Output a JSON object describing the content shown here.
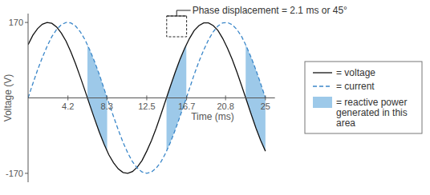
{
  "chart_data": {
    "type": "line",
    "x_label": "Time (ms)",
    "y_label": "Voltage (V)",
    "x": [
      0,
      0.5,
      1,
      1.5,
      2,
      2.5,
      3,
      3.5,
      4,
      4.5,
      5,
      5.5,
      6,
      6.5,
      7,
      7.5,
      8,
      8.5,
      9,
      9.5,
      10,
      10.5,
      11,
      11.5,
      12,
      12.5,
      13,
      13.5,
      14,
      14.5,
      15,
      15.5,
      16,
      16.5,
      17,
      17.5,
      18,
      18.5,
      19,
      19.5,
      20,
      20.5,
      21,
      21.5,
      22,
      22.5,
      23,
      23.5,
      24,
      24.5,
      25
    ],
    "series": [
      {
        "name": "= voltage",
        "color": "#111111",
        "line_style": "solid",
        "values": [
          120,
          141,
          156,
          166,
          170,
          168,
          160,
          146,
          128,
          104,
          77,
          47,
          16,
          -16,
          -47,
          -77,
          -104,
          -128,
          -146,
          -160,
          -168,
          -170,
          -166,
          -156,
          -141,
          -120,
          -96,
          -68,
          -37,
          -5,
          27,
          58,
          87,
          112,
          134,
          152,
          163,
          169,
          169,
          163,
          152,
          134,
          112,
          87,
          58,
          27,
          -5,
          -37,
          -68,
          -96,
          -120
        ]
      },
      {
        "name": "= current",
        "color": "#3b87c9",
        "line_style": "dashed",
        "values": [
          0,
          32,
          63,
          91,
          116,
          138,
          154,
          165,
          170,
          169,
          162,
          149,
          131,
          108,
          82,
          53,
          21,
          -11,
          -42,
          -72,
          -100,
          -124,
          -144,
          -158,
          -167,
          -170,
          -167,
          -158,
          -144,
          -124,
          -100,
          -72,
          -42,
          -11,
          21,
          53,
          82,
          108,
          131,
          149,
          162,
          169,
          170,
          165,
          154,
          138,
          116,
          91,
          63,
          32,
          0
        ]
      }
    ],
    "shaded": {
      "name": "= reactive power generated in this area",
      "color": "#9dc9e9",
      "regions": [
        {
          "x0": 6.25,
          "x1": 8.33
        },
        {
          "x0": 14.58,
          "x1": 16.67
        },
        {
          "x0": 22.92,
          "x1": 25
        }
      ]
    },
    "annotation": {
      "text": "Phase displacement = 2.1 ms or 45°",
      "x0": 14.6,
      "x1": 16.7
    },
    "xlim": [
      0,
      26
    ],
    "xticks": [
      4.2,
      8.3,
      12.5,
      16.7,
      20.8,
      25
    ],
    "ylim": [
      -190,
      190
    ],
    "yticks": [
      -170,
      170
    ],
    "legend": "right"
  }
}
